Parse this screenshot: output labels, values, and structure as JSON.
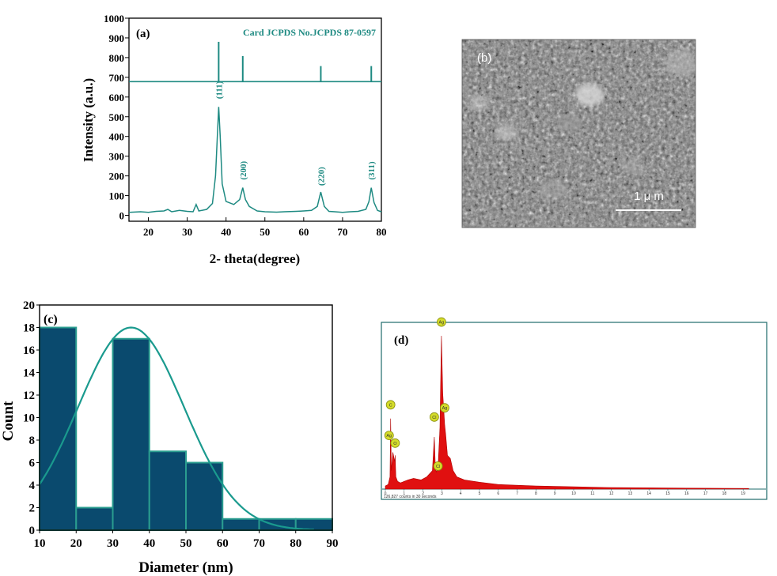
{
  "panels": {
    "a": {
      "label": "(a)"
    },
    "b": {
      "label": "(b)",
      "scale_bar_label": "1 μ m"
    },
    "c": {
      "label": "(c)"
    },
    "d": {
      "label": "(d)",
      "footer_text": "126,827 counts in 30 seconds"
    }
  },
  "chart_data": [
    {
      "panel": "a",
      "type": "line",
      "xlabel": "2- theta(degree)",
      "ylabel": "Intensity (a.u.)",
      "xlim": [
        15,
        80
      ],
      "ylim": [
        -30,
        1000
      ],
      "xticks": [
        20,
        30,
        40,
        50,
        60,
        70,
        80
      ],
      "yticks": [
        0,
        100,
        200,
        300,
        400,
        500,
        600,
        700,
        800,
        900,
        1000
      ],
      "reference_card": {
        "label": "Card JCPDS No.JCPDS 87-0597",
        "baseline": 678,
        "peaks": [
          {
            "x": 38.1,
            "top": 880
          },
          {
            "x": 44.3,
            "top": 808
          },
          {
            "x": 64.4,
            "top": 757
          },
          {
            "x": 77.4,
            "top": 757
          }
        ]
      },
      "series": [
        {
          "x": [
            15,
            18,
            20,
            22,
            24,
            25,
            26,
            28,
            30,
            31.5,
            32.3,
            33,
            35,
            36.5,
            37.3,
            37.8,
            38.1,
            38.5,
            39,
            40,
            42,
            43.5,
            44.3,
            45,
            46,
            48,
            50,
            53,
            55,
            58,
            60,
            62,
            63.5,
            64.4,
            65.3,
            66.5,
            68,
            70,
            72,
            74,
            76,
            76.8,
            77.4,
            78.1,
            79,
            80
          ],
          "y": [
            15,
            18,
            15,
            20,
            22,
            30,
            18,
            25,
            20,
            18,
            55,
            22,
            30,
            60,
            200,
            420,
            550,
            400,
            160,
            70,
            55,
            80,
            140,
            80,
            45,
            22,
            18,
            16,
            18,
            20,
            22,
            25,
            45,
            118,
            45,
            20,
            18,
            15,
            18,
            20,
            30,
            70,
            140,
            65,
            25,
            18
          ]
        }
      ],
      "annotations": [
        {
          "text": "(111)",
          "x": 38.1,
          "y": 590
        },
        {
          "text": "(200)",
          "x": 44.3,
          "y": 180
        },
        {
          "text": "(220)",
          "x": 64.4,
          "y": 150
        },
        {
          "text": "(311)",
          "x": 77.4,
          "y": 180
        }
      ],
      "line_color": "#1e8a82"
    },
    {
      "panel": "c",
      "type": "bar",
      "xlabel": "Diameter (nm)",
      "ylabel": "Count",
      "xlim": [
        10,
        90
      ],
      "ylim": [
        0,
        20
      ],
      "xticks": [
        10,
        20,
        30,
        40,
        50,
        60,
        70,
        80,
        90
      ],
      "yticks": [
        0,
        2,
        4,
        6,
        8,
        10,
        12,
        14,
        16,
        18,
        20
      ],
      "bins": [
        [
          10,
          20
        ],
        [
          20,
          30
        ],
        [
          30,
          40
        ],
        [
          40,
          50
        ],
        [
          50,
          60
        ],
        [
          60,
          70
        ],
        [
          70,
          80
        ],
        [
          80,
          90
        ]
      ],
      "values": [
        18,
        2,
        17,
        7,
        6,
        1,
        1,
        1
      ],
      "fit": {
        "type": "gaussian",
        "mean": 35,
        "sigma": 14.5,
        "peak": 18
      },
      "bar_color": "#0a4a6e",
      "edge_color": "#2a9d8f",
      "fit_color": "#1a9a8e"
    },
    {
      "panel": "d",
      "type": "area",
      "xlim": [
        0,
        20
      ],
      "xticks": [
        0,
        1,
        2,
        3,
        4,
        5,
        6,
        7,
        8,
        9,
        10,
        11,
        12,
        13,
        14,
        15,
        16,
        17,
        18,
        19
      ],
      "ylim": [
        0,
        100
      ],
      "series": [
        {
          "x": [
            0,
            0.15,
            0.25,
            0.28,
            0.32,
            0.4,
            0.5,
            0.52,
            0.56,
            0.65,
            0.8,
            1.0,
            1.2,
            1.5,
            1.9,
            2.2,
            2.5,
            2.6,
            2.65,
            2.7,
            2.8,
            2.9,
            2.98,
            3.05,
            3.15,
            3.2,
            3.3,
            3.45,
            3.6,
            3.8,
            4.2,
            5,
            6,
            8,
            10,
            12,
            14,
            16,
            18,
            19.3
          ],
          "y": [
            2,
            3,
            8,
            46,
            12,
            24,
            18,
            22,
            8,
            5,
            4,
            5,
            6,
            7,
            6,
            8,
            12,
            34,
            16,
            11,
            14,
            40,
            100,
            62,
            42,
            36,
            22,
            20,
            12,
            8,
            6,
            4.5,
            3,
            2,
            1.5,
            1,
            0.8,
            0.6,
            0.5,
            0.4
          ]
        }
      ],
      "element_markers": [
        {
          "label": "C",
          "x": 0.28,
          "y": 55
        },
        {
          "label": "Ag",
          "x": 0.2,
          "y": 35
        },
        {
          "label": "O",
          "x": 0.52,
          "y": 30
        },
        {
          "label": "Cl",
          "x": 2.6,
          "y": 47
        },
        {
          "label": "Cl",
          "x": 2.8,
          "y": 15
        },
        {
          "label": "Ag",
          "x": 2.98,
          "y": 109
        },
        {
          "label": "Ag",
          "x": 3.15,
          "y": 53
        }
      ],
      "fill_color": "#e01010",
      "frame_color": "#1e6b6b"
    }
  ]
}
